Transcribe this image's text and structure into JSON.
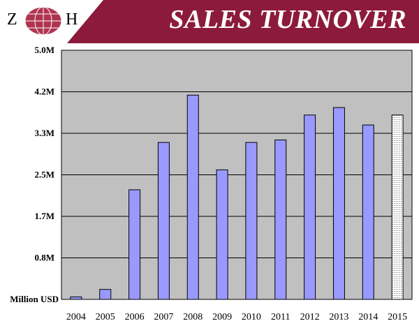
{
  "header": {
    "logo_letters": [
      "Z",
      "H"
    ],
    "title": "SALES TURNOVER",
    "colors": {
      "banner": "#8c1a3c",
      "globe": "#b03450"
    }
  },
  "chart_data": {
    "type": "bar",
    "title": "SALES TURNOVER",
    "ylabel": "Million USD",
    "xlabel": "",
    "categories": [
      "2004",
      "2005",
      "2006",
      "2007",
      "2008",
      "2009",
      "2010",
      "2011",
      "2012",
      "2013",
      "2014",
      "2015"
    ],
    "values": [
      0.05,
      0.2,
      2.2,
      3.15,
      4.1,
      2.6,
      3.15,
      3.2,
      3.7,
      3.85,
      3.5,
      3.7
    ],
    "projected": [
      false,
      false,
      false,
      false,
      false,
      false,
      false,
      false,
      false,
      false,
      false,
      true
    ],
    "y_ticks": [
      "Million USD",
      "0.8M",
      "1.7M",
      "2.5M",
      "3.3M",
      "4.2M",
      "5.0M"
    ],
    "ylim": [
      0,
      5.0
    ],
    "grid": true,
    "colors": {
      "bar": "#9999ff",
      "bar_stroke": "#000000",
      "plot_bg": "#c0c0c0",
      "projected_fill": "#ffffff"
    }
  }
}
